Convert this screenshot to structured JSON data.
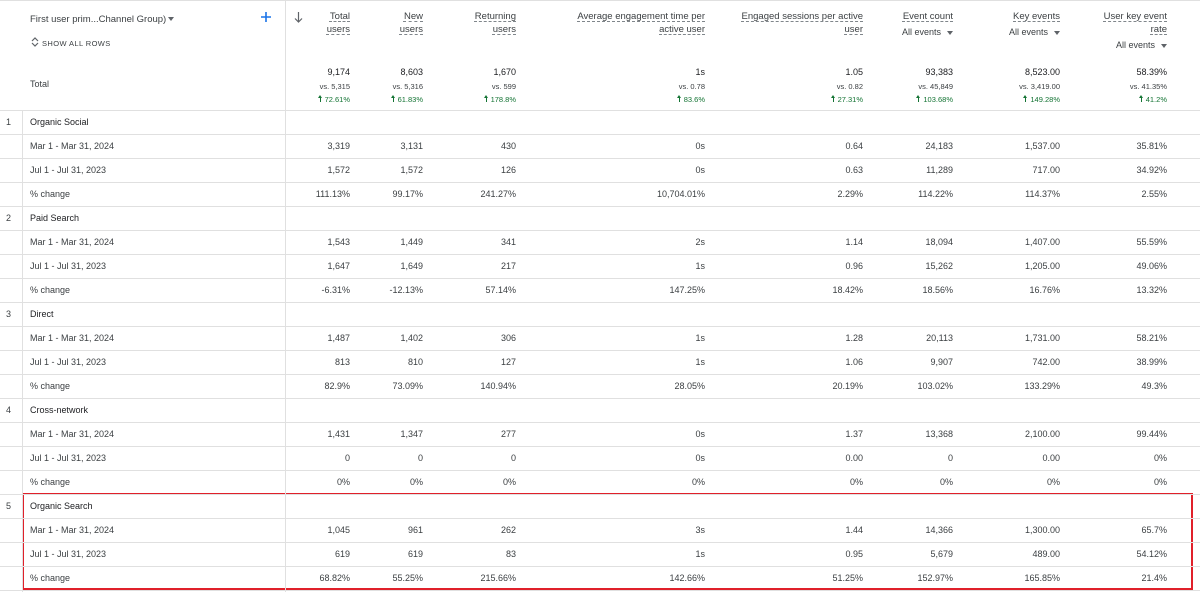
{
  "header": {
    "dimension": "First user prim...Channel Group)",
    "show_all": "SHOW ALL ROWS",
    "columns": [
      {
        "label": "Total users"
      },
      {
        "label": "New users"
      },
      {
        "label": "Returning users"
      },
      {
        "label": "Average engagement time per active user"
      },
      {
        "label": "Engaged sessions per active user"
      },
      {
        "label": "Event count",
        "sub": "All events"
      },
      {
        "label": "Key events",
        "sub": "All events"
      },
      {
        "label": "User key event rate",
        "sub": "All events"
      }
    ]
  },
  "total": {
    "label": "Total",
    "cells": [
      {
        "value": "9,174",
        "compare": "vs. 5,315",
        "change": "72.61%"
      },
      {
        "value": "8,603",
        "compare": "vs. 5,316",
        "change": "61.83%"
      },
      {
        "value": "1,670",
        "compare": "vs. 599",
        "change": "178.8%"
      },
      {
        "value": "1s",
        "compare": "vs. 0.78",
        "change": "83.6%"
      },
      {
        "value": "1.05",
        "compare": "vs. 0.82",
        "change": "27.31%"
      },
      {
        "value": "93,383",
        "compare": "vs. 45,849",
        "change": "103.68%"
      },
      {
        "value": "8,523.00",
        "compare": "vs. 3,419.00",
        "change": "149.28%"
      },
      {
        "value": "58.39%",
        "compare": "vs. 41.35%",
        "change": "41.2%"
      }
    ]
  },
  "groups": [
    {
      "index": "1",
      "name": "Organic Social",
      "rows": [
        {
          "label": "Mar 1 - Mar 31, 2024",
          "cells": [
            "3,319",
            "3,131",
            "430",
            "0s",
            "0.64",
            "24,183",
            "1,537.00",
            "35.81%"
          ]
        },
        {
          "label": "Jul 1 - Jul 31, 2023",
          "cells": [
            "1,572",
            "1,572",
            "126",
            "0s",
            "0.63",
            "11,289",
            "717.00",
            "34.92%"
          ]
        },
        {
          "label": "% change",
          "cells": [
            "111.13%",
            "99.17%",
            "241.27%",
            "10,704.01%",
            "2.29%",
            "114.22%",
            "114.37%",
            "2.55%"
          ]
        }
      ]
    },
    {
      "index": "2",
      "name": "Paid Search",
      "rows": [
        {
          "label": "Mar 1 - Mar 31, 2024",
          "cells": [
            "1,543",
            "1,449",
            "341",
            "2s",
            "1.14",
            "18,094",
            "1,407.00",
            "55.59%"
          ]
        },
        {
          "label": "Jul 1 - Jul 31, 2023",
          "cells": [
            "1,647",
            "1,649",
            "217",
            "1s",
            "0.96",
            "15,262",
            "1,205.00",
            "49.06%"
          ]
        },
        {
          "label": "% change",
          "cells": [
            "-6.31%",
            "-12.13%",
            "57.14%",
            "147.25%",
            "18.42%",
            "18.56%",
            "16.76%",
            "13.32%"
          ]
        }
      ]
    },
    {
      "index": "3",
      "name": "Direct",
      "rows": [
        {
          "label": "Mar 1 - Mar 31, 2024",
          "cells": [
            "1,487",
            "1,402",
            "306",
            "1s",
            "1.28",
            "20,113",
            "1,731.00",
            "58.21%"
          ]
        },
        {
          "label": "Jul 1 - Jul 31, 2023",
          "cells": [
            "813",
            "810",
            "127",
            "1s",
            "1.06",
            "9,907",
            "742.00",
            "38.99%"
          ]
        },
        {
          "label": "% change",
          "cells": [
            "82.9%",
            "73.09%",
            "140.94%",
            "28.05%",
            "20.19%",
            "103.02%",
            "133.29%",
            "49.3%"
          ]
        }
      ]
    },
    {
      "index": "4",
      "name": "Cross-network",
      "rows": [
        {
          "label": "Mar 1 - Mar 31, 2024",
          "cells": [
            "1,431",
            "1,347",
            "277",
            "0s",
            "1.37",
            "13,368",
            "2,100.00",
            "99.44%"
          ]
        },
        {
          "label": "Jul 1 - Jul 31, 2023",
          "cells": [
            "0",
            "0",
            "0",
            "0s",
            "0.00",
            "0",
            "0.00",
            "0%"
          ]
        },
        {
          "label": "% change",
          "cells": [
            "0%",
            "0%",
            "0%",
            "0%",
            "0%",
            "0%",
            "0%",
            "0%"
          ]
        }
      ]
    },
    {
      "index": "5",
      "name": "Organic Search",
      "rows": [
        {
          "label": "Mar 1 - Mar 31, 2024",
          "cells": [
            "1,045",
            "961",
            "262",
            "3s",
            "1.44",
            "14,366",
            "1,300.00",
            "65.7%"
          ]
        },
        {
          "label": "Jul 1 - Jul 31, 2023",
          "cells": [
            "619",
            "619",
            "83",
            "1s",
            "0.95",
            "5,679",
            "489.00",
            "54.12%"
          ]
        },
        {
          "label": "% change",
          "cells": [
            "68.82%",
            "55.25%",
            "215.66%",
            "142.66%",
            "51.25%",
            "152.97%",
            "165.85%",
            "21.4%"
          ]
        }
      ]
    }
  ]
}
